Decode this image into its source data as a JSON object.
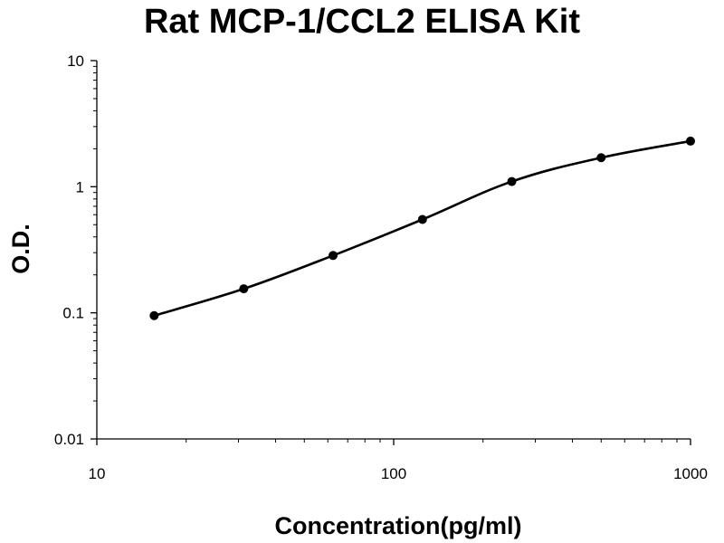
{
  "chart_data": {
    "type": "scatter",
    "title": "Rat MCP-1/CCL2 ELISA Kit",
    "xlabel": "Concentration(pg/ml)",
    "ylabel": "O.D.",
    "x_scale": "log",
    "y_scale": "log",
    "xlim": [
      10,
      1000
    ],
    "ylim": [
      0.01,
      10
    ],
    "x_ticks": [
      "10",
      "100",
      "1000"
    ],
    "y_ticks": [
      "0.01",
      "0.1",
      "1",
      "10"
    ],
    "grid": false,
    "legend": "none",
    "trendline": "smooth fitted curve through points",
    "series": [
      {
        "x": [
          15.6,
          31.25,
          62.5,
          125,
          250,
          500,
          1000
        ],
        "y": [
          0.095,
          0.155,
          0.285,
          0.55,
          1.1,
          1.7,
          2.3
        ]
      }
    ],
    "colors": {
      "marker": "#000000",
      "line": "#000000",
      "axis": "#000000"
    }
  }
}
